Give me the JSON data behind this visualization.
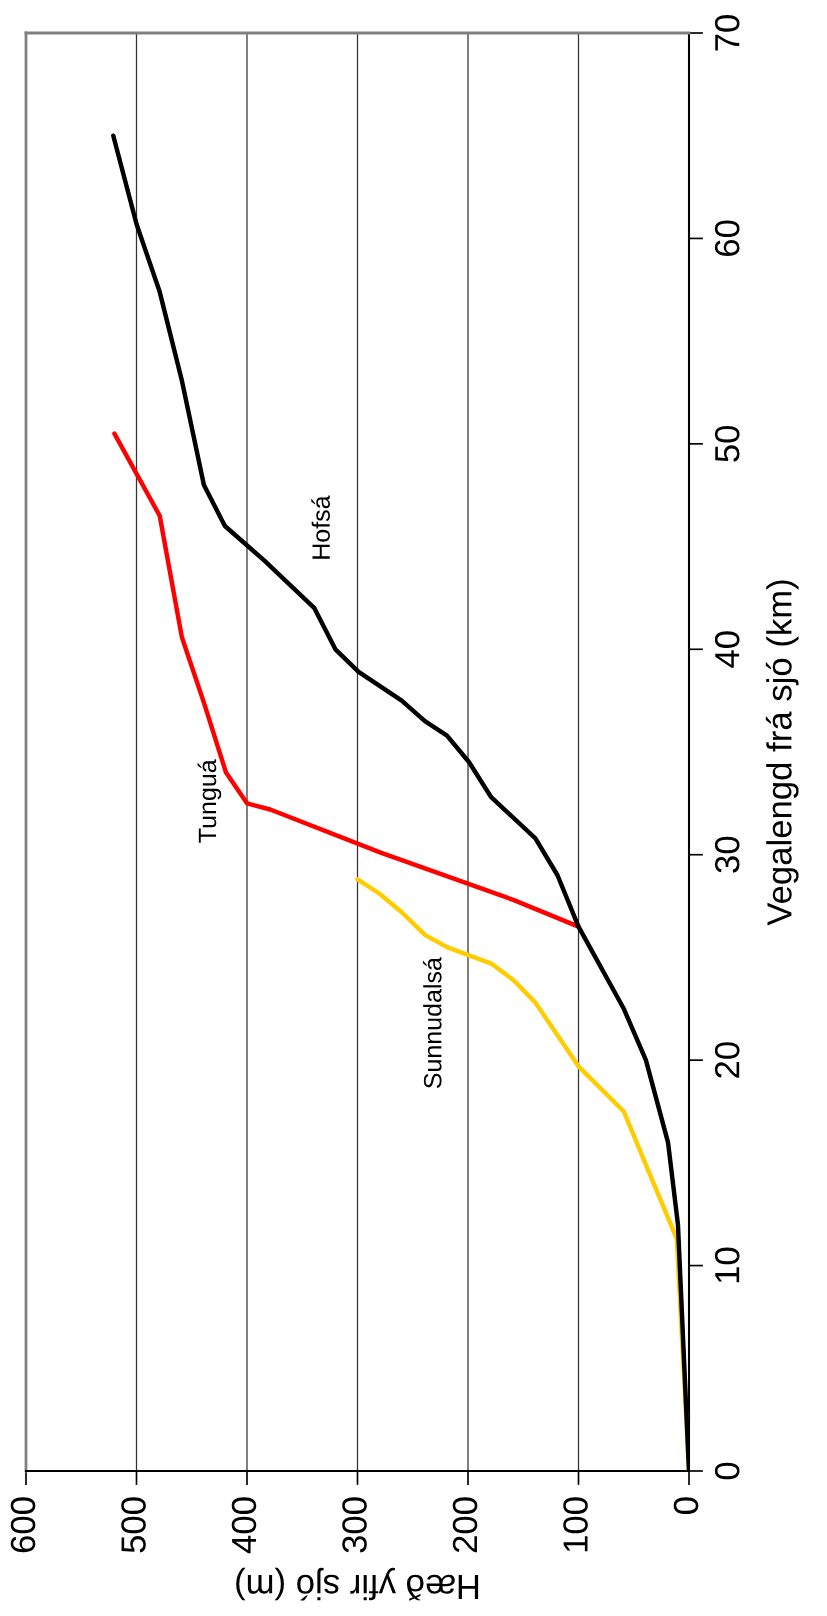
{
  "chart_data": {
    "type": "line",
    "xlabel": "Hæð yfir sjó (m)",
    "ylabel": "Vegalengd frá sjó (km)",
    "xlim": [
      600,
      0
    ],
    "xticks": [
      0,
      100,
      200,
      300,
      400,
      500,
      600
    ],
    "ylim": [
      0,
      70
    ],
    "yticks": [
      0,
      10,
      20,
      30,
      40,
      50,
      60,
      70
    ],
    "grid": "x",
    "legend": false,
    "marker": "none",
    "line_style": "solid",
    "series": [
      {
        "name": "Sunnudalsá",
        "color": "#ffcc00",
        "values": [
          0,
          11.3,
          14.9,
          17.5,
          19.7,
          22.8,
          23.9,
          24.7,
          25.5,
          26.1,
          27.2,
          28.1,
          28.8
        ],
        "x": [
          0,
          11,
          39,
          59,
          100,
          139,
          159,
          179,
          219,
          239,
          260,
          280,
          300
        ]
      },
      {
        "name": "Tunguá",
        "color": "#ff0000",
        "values": [
          26.5,
          27.8,
          30.1,
          32.2,
          32.5,
          34.0,
          37.4,
          40.6,
          46.5,
          50.5
        ],
        "x": [
          100,
          159,
          279,
          379,
          400,
          419,
          439,
          459,
          479,
          520
        ]
      },
      {
        "name": "Hofsá",
        "color": "#000000",
        "values": [
          0,
          12.0,
          16.0,
          20.0,
          22.5,
          26.5,
          29.0,
          30.8,
          32.8,
          34.5,
          35.8,
          36.5,
          37.5,
          38.9,
          40.0,
          42.0,
          44.3,
          46.0,
          48.0,
          53.1,
          57.4,
          60.7,
          65.0
        ],
        "x": [
          0,
          10,
          19,
          39,
          59,
          100,
          119,
          139,
          179,
          199,
          219,
          239,
          260,
          299,
          320,
          339,
          384,
          420,
          439,
          459,
          479,
          500,
          521
        ]
      }
    ]
  }
}
